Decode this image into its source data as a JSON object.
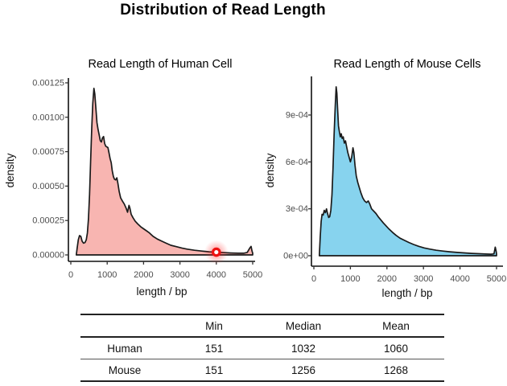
{
  "page": {
    "title": "Distribution of Read Length"
  },
  "chart_data": [
    {
      "type": "area",
      "id": "human-density",
      "title": "Read Length of Human Cell",
      "xlabel": "length / bp",
      "ylabel": "density",
      "xlim": [
        0,
        5000
      ],
      "ylim": [
        0,
        0.00125
      ],
      "grid": false,
      "legend": "none",
      "x_ticks": [
        0,
        1000,
        2000,
        3000,
        4000,
        5000
      ],
      "y_ticks": [
        "0.00000",
        "0.00025",
        "0.00050",
        "0.00075",
        "0.00100",
        "0.00125"
      ],
      "y_tick_values": [
        0,
        2.5,
        5,
        7.5,
        10,
        12.5
      ],
      "y_scale": 0.0001,
      "fill_color": "#F8B5B1",
      "line_color": "#1a1a1a",
      "marker": {
        "x": 4000,
        "y": 0.2,
        "color": "#ee1111",
        "meaning": "click-highlight-ring"
      },
      "curve": [
        [
          150,
          0
        ],
        [
          175,
          0.5
        ],
        [
          205,
          1.1
        ],
        [
          240,
          1.4
        ],
        [
          275,
          1.35
        ],
        [
          310,
          1.0
        ],
        [
          350,
          0.85
        ],
        [
          390,
          0.9
        ],
        [
          425,
          1.1
        ],
        [
          455,
          1.6
        ],
        [
          485,
          2.6
        ],
        [
          515,
          4.4
        ],
        [
          545,
          6.8
        ],
        [
          575,
          9.2
        ],
        [
          605,
          11.0
        ],
        [
          635,
          12.1
        ],
        [
          660,
          11.7
        ],
        [
          690,
          10.6
        ],
        [
          720,
          9.6
        ],
        [
          750,
          9.1
        ],
        [
          780,
          8.7
        ],
        [
          810,
          8.3
        ],
        [
          840,
          8.2
        ],
        [
          870,
          8.5
        ],
        [
          900,
          8.6
        ],
        [
          930,
          8.1
        ],
        [
          960,
          7.9
        ],
        [
          990,
          7.85
        ],
        [
          1020,
          7.8
        ],
        [
          1050,
          7.4
        ],
        [
          1080,
          7.0
        ],
        [
          1110,
          6.7
        ],
        [
          1140,
          6.1
        ],
        [
          1170,
          5.7
        ],
        [
          1200,
          5.5
        ],
        [
          1235,
          5.45
        ],
        [
          1265,
          5.6
        ],
        [
          1295,
          5.2
        ],
        [
          1330,
          4.6
        ],
        [
          1370,
          4.15
        ],
        [
          1420,
          3.9
        ],
        [
          1470,
          3.7
        ],
        [
          1520,
          3.4
        ],
        [
          1560,
          3.1
        ],
        [
          1600,
          3.6
        ],
        [
          1625,
          3.4
        ],
        [
          1660,
          2.95
        ],
        [
          1710,
          2.7
        ],
        [
          1770,
          2.45
        ],
        [
          1840,
          2.25
        ],
        [
          1920,
          2.05
        ],
        [
          2000,
          1.9
        ],
        [
          2080,
          1.75
        ],
        [
          2160,
          1.6
        ],
        [
          2260,
          1.35
        ],
        [
          2380,
          1.15
        ],
        [
          2500,
          1.0
        ],
        [
          2620,
          0.85
        ],
        [
          2750,
          0.7
        ],
        [
          2900,
          0.6
        ],
        [
          3050,
          0.5
        ],
        [
          3200,
          0.42
        ],
        [
          3400,
          0.34
        ],
        [
          3600,
          0.28
        ],
        [
          3800,
          0.23
        ],
        [
          4000,
          0.2
        ],
        [
          4200,
          0.17
        ],
        [
          4400,
          0.14
        ],
        [
          4600,
          0.12
        ],
        [
          4750,
          0.12
        ],
        [
          4850,
          0.18
        ],
        [
          4920,
          0.5
        ],
        [
          4955,
          0.62
        ],
        [
          4980,
          0.3
        ],
        [
          5000,
          0.12
        ]
      ]
    },
    {
      "type": "area",
      "id": "mouse-density",
      "title": "Read Length of Mouse Cells",
      "xlabel": "length / bp",
      "ylabel": "density",
      "xlim": [
        0,
        5000
      ],
      "ylim": [
        0,
        0.00114
      ],
      "grid": false,
      "legend": "none",
      "x_ticks": [
        0,
        1000,
        2000,
        3000,
        4000,
        5000
      ],
      "y_ticks": [
        "0e+00",
        "3e-04",
        "6e-04",
        "9e-04"
      ],
      "y_tick_values": [
        0,
        3,
        6,
        9
      ],
      "y_scale": 0.0001,
      "fill_color": "#87D3EE",
      "line_color": "#1a1a1a",
      "curve": [
        [
          150,
          0
        ],
        [
          175,
          1.2
        ],
        [
          200,
          2.2
        ],
        [
          225,
          2.65
        ],
        [
          255,
          2.6
        ],
        [
          285,
          2.9
        ],
        [
          315,
          2.75
        ],
        [
          345,
          3.0
        ],
        [
          375,
          2.7
        ],
        [
          405,
          2.45
        ],
        [
          435,
          2.5
        ],
        [
          465,
          2.9
        ],
        [
          495,
          3.9
        ],
        [
          525,
          5.6
        ],
        [
          555,
          7.8
        ],
        [
          585,
          9.6
        ],
        [
          610,
          10.8
        ],
        [
          630,
          10.4
        ],
        [
          650,
          9.4
        ],
        [
          675,
          8.3
        ],
        [
          700,
          7.9
        ],
        [
          725,
          7.6
        ],
        [
          750,
          7.8
        ],
        [
          775,
          7.5
        ],
        [
          805,
          7.6
        ],
        [
          835,
          7.2
        ],
        [
          865,
          7.35
        ],
        [
          895,
          7.0
        ],
        [
          930,
          6.6
        ],
        [
          965,
          6.3
        ],
        [
          1000,
          6.0
        ],
        [
          1035,
          6.3
        ],
        [
          1070,
          6.9
        ],
        [
          1095,
          6.6
        ],
        [
          1125,
          5.8
        ],
        [
          1160,
          5.1
        ],
        [
          1200,
          4.7
        ],
        [
          1245,
          4.35
        ],
        [
          1290,
          4.0
        ],
        [
          1340,
          3.7
        ],
        [
          1390,
          3.5
        ],
        [
          1440,
          3.4
        ],
        [
          1490,
          3.5
        ],
        [
          1530,
          3.3
        ],
        [
          1580,
          3.0
        ],
        [
          1640,
          2.85
        ],
        [
          1700,
          2.7
        ],
        [
          1760,
          2.5
        ],
        [
          1830,
          2.3
        ],
        [
          1900,
          2.1
        ],
        [
          1980,
          1.9
        ],
        [
          2060,
          1.7
        ],
        [
          2150,
          1.5
        ],
        [
          2250,
          1.3
        ],
        [
          2360,
          1.12
        ],
        [
          2480,
          0.98
        ],
        [
          2600,
          0.85
        ],
        [
          2730,
          0.72
        ],
        [
          2870,
          0.6
        ],
        [
          3020,
          0.5
        ],
        [
          3180,
          0.42
        ],
        [
          3350,
          0.35
        ],
        [
          3530,
          0.3
        ],
        [
          3720,
          0.25
        ],
        [
          3920,
          0.21
        ],
        [
          4120,
          0.18
        ],
        [
          4320,
          0.15
        ],
        [
          4520,
          0.13
        ],
        [
          4700,
          0.11
        ],
        [
          4850,
          0.1
        ],
        [
          4930,
          0.12
        ],
        [
          4965,
          0.55
        ],
        [
          4990,
          0.3
        ],
        [
          5000,
          0.12
        ]
      ]
    }
  ],
  "table": {
    "headers": [
      "Min",
      "Median",
      "Mean"
    ],
    "rows": [
      {
        "label": "Human",
        "values": [
          "151",
          "1032",
          "1060"
        ]
      },
      {
        "label": "Mouse",
        "values": [
          "151",
          "1256",
          "1268"
        ]
      }
    ]
  }
}
